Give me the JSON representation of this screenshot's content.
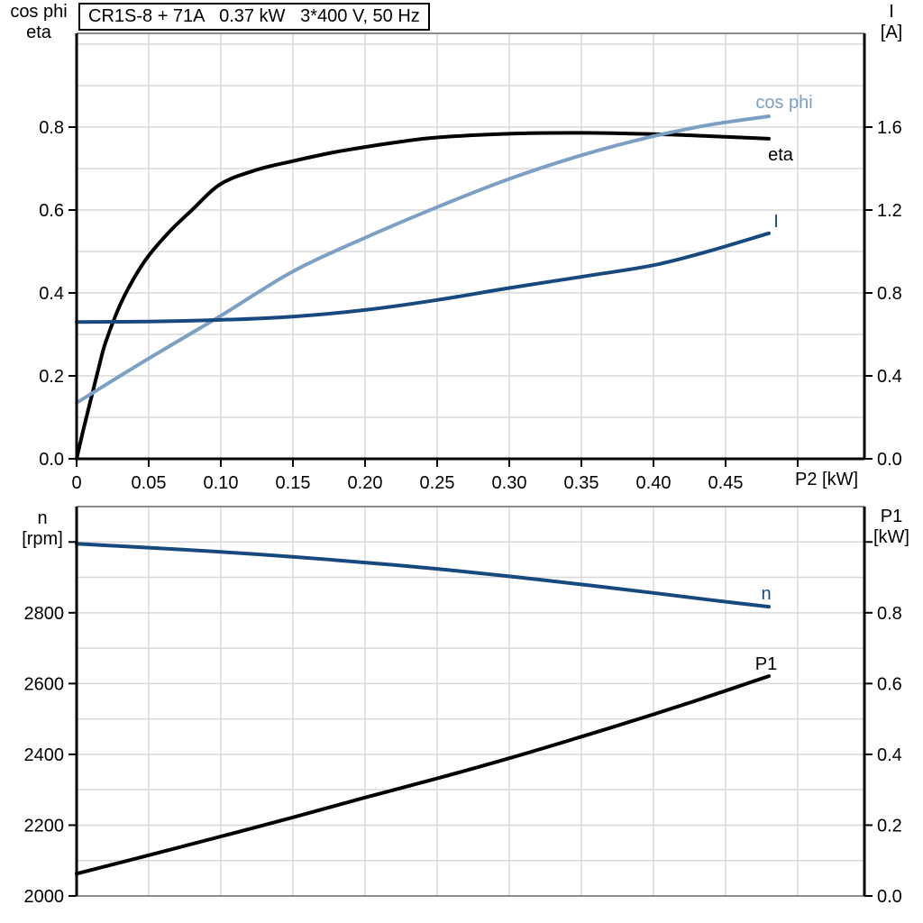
{
  "palette": {
    "black_curve": "#000000",
    "dark_blue_curve": "#17497E",
    "light_blue_curve": "#7C9FC4",
    "grid": "#D8D8D8",
    "frame_gray": "#8C8C8C",
    "axis": "#000000",
    "background": "#FFFFFF"
  },
  "chart_data": [
    {
      "type": "line",
      "title": "CR1S-8 + 71A   0.37 kW   3*400 V, 50 Hz",
      "x_axis": {
        "label": "P2 [kW]",
        "min": 0,
        "max": 0.54625,
        "tick_step": 0.05,
        "last_tick": 0.5,
        "tick_labels": [
          "0",
          "0.05",
          "0.10",
          "0.15",
          "0.20",
          "0.25",
          "0.30",
          "0.35",
          "0.40",
          "0.45",
          ""
        ],
        "grid": true
      },
      "y_axis_left": {
        "label_lines": [
          "cos phi",
          "eta"
        ],
        "min": 0,
        "max": 1.0261,
        "tick_values": [
          0,
          0.2,
          0.4,
          0.6,
          0.8
        ],
        "tick_labels": [
          "0.0",
          "0.2",
          "0.4",
          "0.6",
          "0.8"
        ],
        "minor_grid_step": 0.1
      },
      "y_axis_right": {
        "label_lines": [
          "I",
          "[A]"
        ],
        "min": 0,
        "max": 2.0522,
        "tick_values": [
          0,
          0.4,
          0.8,
          1.2,
          1.6
        ],
        "tick_labels": [
          "0.0",
          "0.4",
          "0.8",
          "1.2",
          "1.6"
        ],
        "minor_grid_step": 0.2
      },
      "series": [
        {
          "name": "eta",
          "axis": "left",
          "color": "#000000",
          "x": [
            0,
            0.005,
            0.01,
            0.015,
            0.02,
            0.03,
            0.04,
            0.05,
            0.065,
            0.08,
            0.1,
            0.125,
            0.15,
            0.175,
            0.2,
            0.225,
            0.25,
            0.3,
            0.35,
            0.4,
            0.44,
            0.48
          ],
          "y": [
            0,
            0.075,
            0.145,
            0.215,
            0.28,
            0.37,
            0.437,
            0.49,
            0.55,
            0.6,
            0.663,
            0.697,
            0.718,
            0.737,
            0.752,
            0.765,
            0.775,
            0.784,
            0.786,
            0.783,
            0.778,
            0.772
          ]
        },
        {
          "name": "cos phi",
          "axis": "left",
          "color": "#7C9FC4",
          "x": [
            0,
            0.05,
            0.1,
            0.15,
            0.2,
            0.25,
            0.3,
            0.35,
            0.4,
            0.44,
            0.48
          ],
          "y": [
            0.135,
            0.242,
            0.345,
            0.452,
            0.533,
            0.607,
            0.675,
            0.732,
            0.778,
            0.806,
            0.826
          ]
        },
        {
          "name": "I",
          "axis": "right",
          "color": "#17497E",
          "x": [
            0,
            0.05,
            0.1,
            0.15,
            0.2,
            0.25,
            0.3,
            0.35,
            0.4,
            0.44,
            0.48
          ],
          "y": [
            0.66,
            0.662,
            0.67,
            0.686,
            0.718,
            0.766,
            0.824,
            0.878,
            0.934,
            1.005,
            1.088
          ]
        }
      ]
    },
    {
      "type": "line",
      "title": "",
      "x_axis": {
        "label": "",
        "min": 0,
        "max": 0.54625,
        "tick_step": 0.05,
        "last_tick": 0.5,
        "tick_labels": [],
        "grid": true
      },
      "y_axis_left": {
        "label_lines": [
          "n",
          "[rpm]"
        ],
        "min": 2000,
        "max": 3100,
        "tick_values": [
          2000,
          2200,
          2400,
          2600,
          2800,
          3000
        ],
        "tick_labels": [
          "2000",
          "2200",
          "2400",
          "2600",
          "2800",
          ""
        ],
        "minor_grid_step": 100
      },
      "y_axis_right": {
        "label_lines": [
          "P1",
          "[kW]"
        ],
        "min": 0,
        "max": 1.1,
        "tick_values": [
          0,
          0.2,
          0.4,
          0.6,
          0.8,
          1.0
        ],
        "tick_labels": [
          "0.0",
          "0.2",
          "0.4",
          "0.6",
          "0.8",
          ""
        ],
        "minor_grid_step": 0.1
      },
      "series": [
        {
          "name": "n",
          "axis": "left",
          "color": "#17497E",
          "x": [
            0,
            0.05,
            0.1,
            0.15,
            0.2,
            0.25,
            0.3,
            0.35,
            0.4,
            0.44,
            0.48
          ],
          "y": [
            2995,
            2984,
            2972,
            2958,
            2942,
            2924,
            2903,
            2880,
            2856,
            2836,
            2817
          ]
        },
        {
          "name": "P1",
          "axis": "right",
          "color": "#000000",
          "x": [
            0,
            0.05,
            0.1,
            0.15,
            0.2,
            0.25,
            0.3,
            0.35,
            0.4,
            0.44,
            0.48
          ],
          "y": [
            0.063,
            0.115,
            0.168,
            0.222,
            0.278,
            0.332,
            0.389,
            0.45,
            0.513,
            0.566,
            0.621
          ]
        }
      ]
    }
  ]
}
